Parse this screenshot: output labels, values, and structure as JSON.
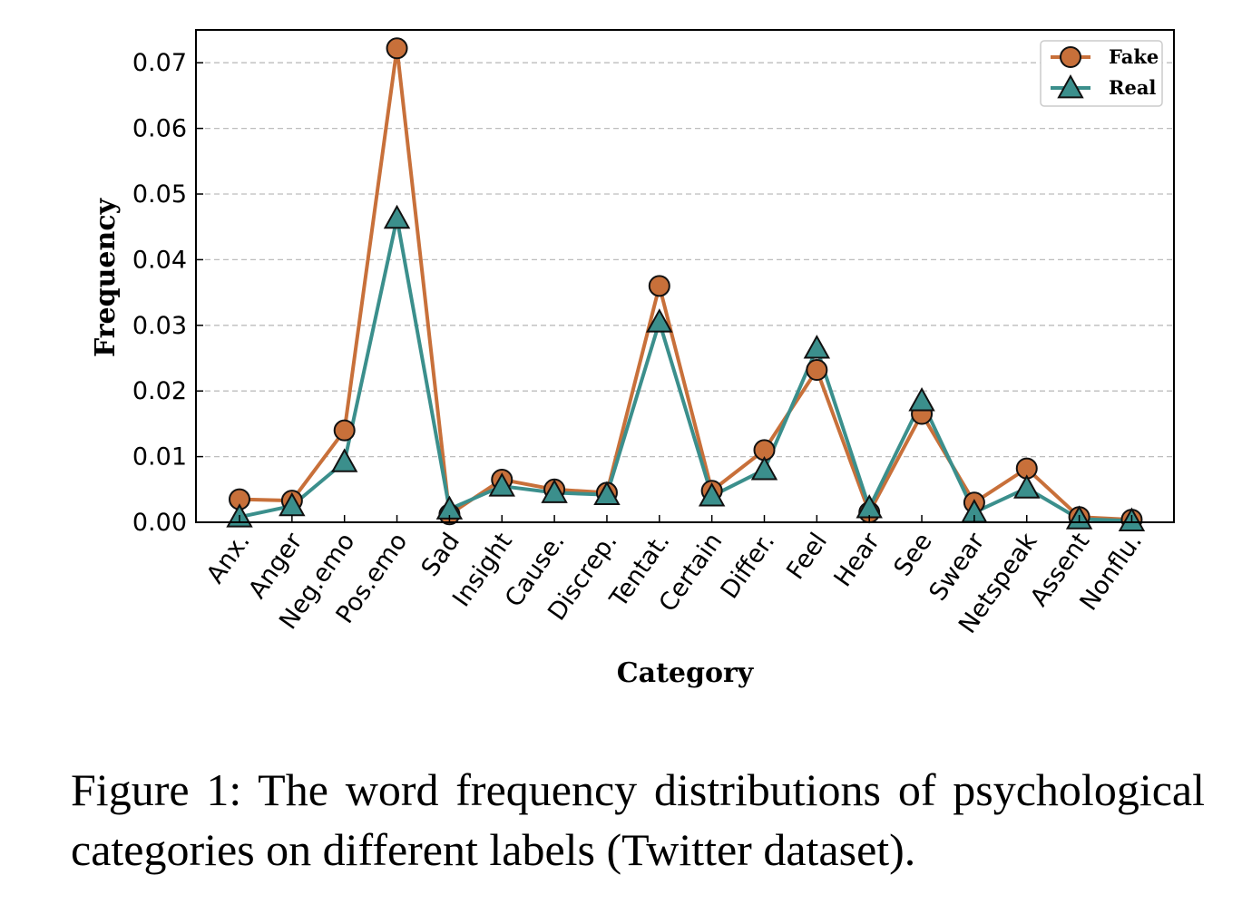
{
  "chart_data": {
    "type": "line",
    "title": "",
    "xlabel": "Category",
    "ylabel": "Frequency",
    "ylim": [
      0,
      0.075
    ],
    "yticks": [
      "0.00",
      "0.01",
      "0.02",
      "0.03",
      "0.04",
      "0.05",
      "0.06",
      "0.07"
    ],
    "grid": "horizontal dashed",
    "legend_position": "top-right",
    "categories": [
      "Anx.",
      "Anger",
      "Neg.emo",
      "Pos.emo",
      "Sad",
      "Insight",
      "Cause.",
      "Discrep.",
      "Tentat.",
      "Certain",
      "Differ.",
      "Feel",
      "Hear",
      "See",
      "Swear",
      "Netspeak",
      "Assent",
      "Nonflu."
    ],
    "series": [
      {
        "name": "Fake",
        "color": "#c8703a",
        "marker": "circle",
        "values": [
          0.0035,
          0.0033,
          0.014,
          0.0722,
          0.0012,
          0.0065,
          0.005,
          0.0045,
          0.036,
          0.0048,
          0.011,
          0.0232,
          0.0015,
          0.0165,
          0.003,
          0.0082,
          0.0008,
          0.0004
        ]
      },
      {
        "name": "Real",
        "color": "#3b8f8c",
        "marker": "triangle",
        "values": [
          0.0008,
          0.0025,
          0.0092,
          0.0463,
          0.002,
          0.0055,
          0.0045,
          0.0042,
          0.0305,
          0.004,
          0.008,
          0.0265,
          0.0022,
          0.0185,
          0.0015,
          0.0052,
          0.0005,
          0.0002
        ]
      }
    ]
  },
  "caption": "Figure 1: The word frequency distributions of psychological categories on different labels (Twitter dataset)."
}
